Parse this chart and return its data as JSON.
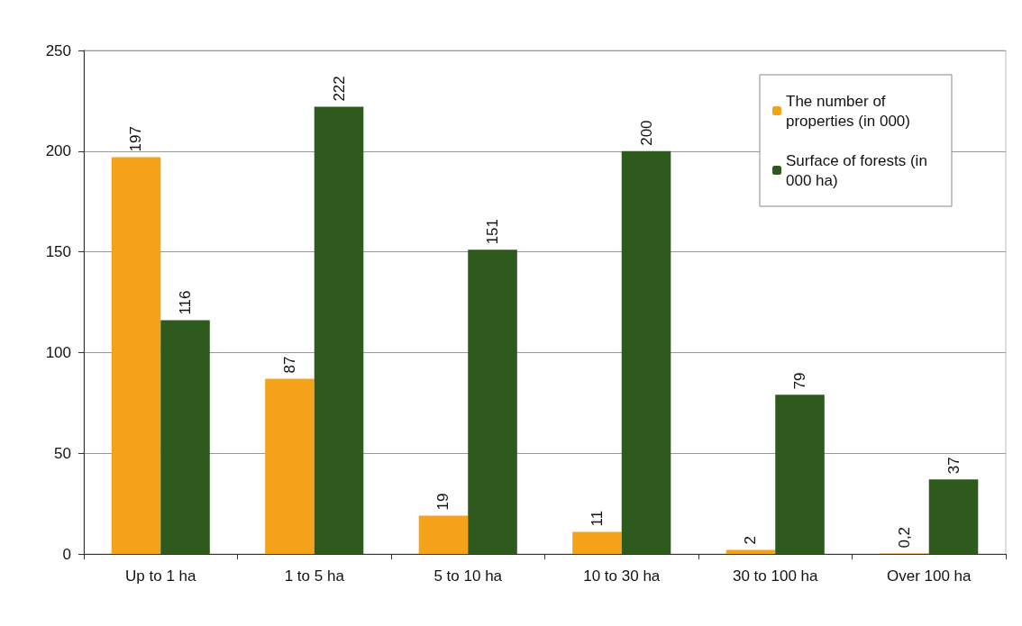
{
  "chart_data": {
    "type": "bar",
    "categories": [
      "Up to 1 ha",
      "1 to 5 ha",
      "5 to 10 ha",
      "10 to 30 ha",
      "30 to 100 ha",
      "Over 100 ha"
    ],
    "series": [
      {
        "name": "The number of properties (in 000)",
        "color": "#f5a21b",
        "values": [
          197,
          87,
          19,
          11,
          2,
          0.2
        ],
        "value_labels": [
          "197",
          "87",
          "19",
          "11",
          "2",
          "0,2"
        ]
      },
      {
        "name": "Surface of forests (in 000 ha)",
        "color": "#2e5a1e",
        "values": [
          116,
          222,
          151,
          200,
          79,
          37
        ],
        "value_labels": [
          "116",
          "222",
          "151",
          "200",
          "79",
          "37"
        ]
      }
    ],
    "ylim": [
      0,
      250
    ],
    "yticks": [
      0,
      50,
      100,
      150,
      200,
      250
    ],
    "grid": "y",
    "legend": "top right"
  }
}
